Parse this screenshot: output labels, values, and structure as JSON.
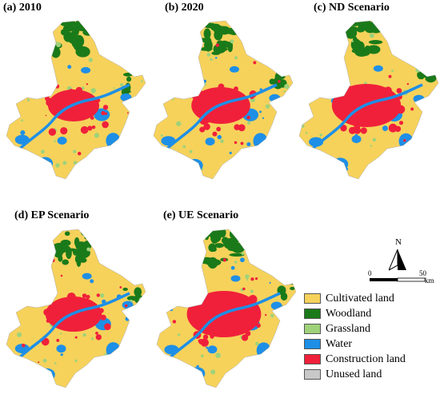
{
  "panels": [
    {
      "id": "a",
      "title": "(a) 2010"
    },
    {
      "id": "b",
      "title": "(b) 2020"
    },
    {
      "id": "c",
      "title": "(c) ND Scenario"
    },
    {
      "id": "d",
      "title": "(d) EP Scenario"
    },
    {
      "id": "e",
      "title": "(e) UE Scenario"
    }
  ],
  "north_arrow": {
    "label": "N"
  },
  "scale_bar": {
    "start": "0",
    "end": "50",
    "unit": "km"
  },
  "legend": [
    {
      "label": "Cultivated land",
      "color": "#f6d25b"
    },
    {
      "label": "Woodland",
      "color": "#1a7a1a"
    },
    {
      "label": "Grassland",
      "color": "#9fd27a"
    },
    {
      "label": "Water",
      "color": "#1e8fe6"
    },
    {
      "label": "Construction land",
      "color": "#f0203a"
    },
    {
      "label": "Unused land",
      "color": "#c8c8c8"
    }
  ]
}
